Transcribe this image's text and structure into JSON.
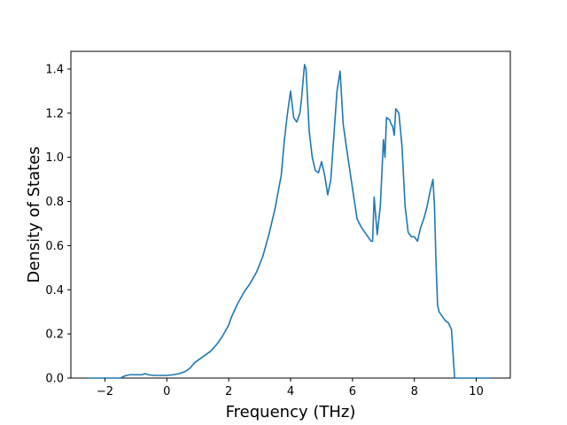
{
  "chart_data": {
    "type": "line",
    "title": "",
    "xlabel": "Frequency (THz)",
    "ylabel": "Density of States",
    "xlim": [
      -3.1,
      11.1
    ],
    "ylim": [
      0.0,
      1.48
    ],
    "grid": false,
    "x_ticks": [
      -2,
      0,
      2,
      4,
      6,
      8,
      10
    ],
    "x_tick_labels": [
      "−2",
      "0",
      "2",
      "4",
      "6",
      "8",
      "10"
    ],
    "y_ticks": [
      0.0,
      0.2,
      0.4,
      0.6,
      0.8,
      1.0,
      1.2,
      1.4
    ],
    "y_tick_labels": [
      "0.0",
      "0.2",
      "0.4",
      "0.6",
      "0.8",
      "1.0",
      "1.2",
      "1.4"
    ],
    "series": [
      {
        "color": "#1f77b4",
        "x": [
          -2.55,
          -1.5,
          -1.35,
          -1.2,
          -1.0,
          -0.8,
          -0.7,
          -0.6,
          -0.4,
          -0.2,
          0.0,
          0.2,
          0.4,
          0.6,
          0.75,
          0.9,
          1.0,
          1.2,
          1.4,
          1.6,
          1.8,
          2.0,
          2.1,
          2.3,
          2.5,
          2.7,
          2.9,
          3.1,
          3.3,
          3.5,
          3.7,
          3.8,
          3.9,
          4.0,
          4.1,
          4.2,
          4.3,
          4.35,
          4.45,
          4.5,
          4.6,
          4.7,
          4.8,
          4.9,
          5.0,
          5.1,
          5.2,
          5.3,
          5.4,
          5.5,
          5.6,
          5.7,
          5.8,
          6.0,
          6.15,
          6.3,
          6.5,
          6.6,
          6.65,
          6.7,
          6.8,
          6.9,
          7.0,
          7.05,
          7.1,
          7.2,
          7.25,
          7.3,
          7.35,
          7.4,
          7.5,
          7.6,
          7.7,
          7.8,
          7.9,
          8.0,
          8.1,
          8.2,
          8.3,
          8.4,
          8.5,
          8.6,
          8.65,
          8.7,
          8.75,
          8.8,
          8.9,
          9.0,
          9.1,
          9.2,
          9.3,
          9.38,
          9.45,
          9.6,
          10.45
        ],
        "y": [
          0.0,
          0.0,
          0.01,
          0.015,
          0.015,
          0.015,
          0.02,
          0.015,
          0.012,
          0.012,
          0.012,
          0.015,
          0.02,
          0.03,
          0.045,
          0.07,
          0.08,
          0.1,
          0.12,
          0.15,
          0.19,
          0.24,
          0.28,
          0.34,
          0.39,
          0.43,
          0.48,
          0.55,
          0.65,
          0.77,
          0.92,
          1.08,
          1.2,
          1.3,
          1.18,
          1.16,
          1.2,
          1.26,
          1.42,
          1.4,
          1.12,
          1.0,
          0.94,
          0.93,
          0.98,
          0.92,
          0.83,
          0.9,
          1.1,
          1.3,
          1.39,
          1.15,
          1.05,
          0.86,
          0.72,
          0.68,
          0.64,
          0.62,
          0.62,
          0.82,
          0.65,
          0.78,
          1.08,
          1.0,
          1.18,
          1.17,
          1.15,
          1.14,
          1.1,
          1.22,
          1.2,
          1.05,
          0.78,
          0.66,
          0.64,
          0.64,
          0.62,
          0.68,
          0.72,
          0.77,
          0.84,
          0.9,
          0.78,
          0.52,
          0.33,
          0.3,
          0.28,
          0.26,
          0.25,
          0.22,
          0.0,
          0.0,
          0.0,
          0.0,
          0.0
        ]
      }
    ]
  }
}
